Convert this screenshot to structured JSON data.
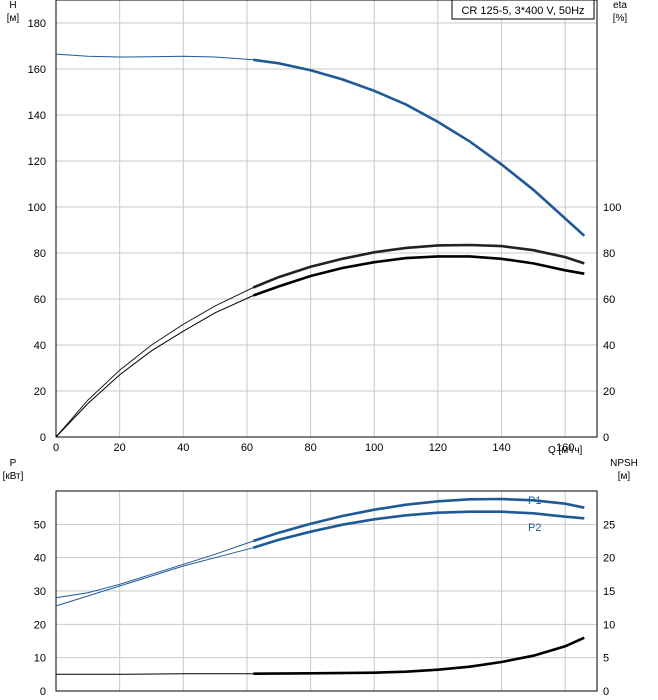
{
  "chart_data": [
    {
      "type": "line",
      "title": "CR 125-5, 3*400 V, 50Hz",
      "xlabel": "Q [м³/ч]",
      "x_ticks": [
        "0",
        "20",
        "40",
        "60",
        "80",
        "100",
        "120",
        "140",
        "160"
      ],
      "xlim": [
        0,
        170
      ],
      "y_left": {
        "label_top": "H",
        "label_unit": "[м]",
        "lim": [
          0,
          190
        ],
        "ticks": [
          "0",
          "20",
          "40",
          "60",
          "80",
          "100",
          "120",
          "140",
          "160",
          "180"
        ]
      },
      "y_right": {
        "label_top": "eta",
        "label_unit": "[%]",
        "lim": [
          0,
          190
        ],
        "ticks": [
          "0",
          "20",
          "40",
          "60",
          "80",
          "100"
        ]
      },
      "grid": true,
      "series": [
        {
          "role": "H",
          "color": "#1f5a96",
          "x": [
            0,
            10,
            20,
            30,
            40,
            50,
            62
          ],
          "y": [
            166.5,
            165.5,
            165.2,
            165.3,
            165.5,
            165.2,
            164
          ],
          "x_bold": [
            62,
            70,
            80,
            90,
            100,
            110,
            120,
            130,
            140,
            150,
            160,
            166
          ],
          "y_bold": [
            164,
            162.5,
            159.5,
            155.5,
            150.5,
            144.5,
            137,
            128.5,
            118.5,
            107.5,
            95,
            87.5
          ]
        },
        {
          "role": "eta-1",
          "color": "#222222",
          "x": [
            0,
            10,
            20,
            30,
            40,
            50,
            62
          ],
          "y": [
            0,
            16,
            29,
            40,
            49,
            57,
            65
          ],
          "x_bold": [
            62,
            70,
            80,
            90,
            100,
            110,
            120,
            130,
            140,
            150,
            160,
            166
          ],
          "y_bold": [
            65,
            69.5,
            74,
            77.5,
            80.3,
            82.2,
            83.3,
            83.5,
            83,
            81.2,
            78.2,
            75.5
          ]
        },
        {
          "role": "eta-2",
          "color": "#000000",
          "x": [
            0,
            10,
            20,
            30,
            40,
            50,
            62
          ],
          "y": [
            0,
            14.5,
            27,
            37.5,
            46,
            54,
            61.5
          ],
          "x_bold": [
            62,
            70,
            80,
            90,
            100,
            110,
            120,
            130,
            140,
            150,
            160,
            166
          ],
          "y_bold": [
            61.5,
            65.5,
            70,
            73.5,
            76,
            77.8,
            78.5,
            78.5,
            77.5,
            75.5,
            72.5,
            71
          ]
        }
      ]
    },
    {
      "type": "line",
      "x_ticks": [
        "0",
        "20",
        "40",
        "60",
        "80",
        "100",
        "120",
        "140",
        "160"
      ],
      "xlim": [
        0,
        170
      ],
      "y_left": {
        "label_top": "P",
        "label_unit": "[кВт]",
        "lim": [
          0,
          60
        ],
        "ticks": [
          "0",
          "10",
          "20",
          "30",
          "40",
          "50"
        ]
      },
      "y_right": {
        "label_top": "NPSH",
        "label_unit": "[м]",
        "lim": [
          0,
          30
        ],
        "ticks": [
          "0",
          "5",
          "10",
          "15",
          "20",
          "25"
        ]
      },
      "grid": true,
      "series": [
        {
          "name": "P1",
          "color": "#1f5a96",
          "axis": "left",
          "x": [
            0,
            10,
            20,
            30,
            40,
            50,
            62
          ],
          "y": [
            28,
            29.5,
            32,
            35,
            38,
            41,
            45
          ],
          "x_bold": [
            62,
            70,
            80,
            90,
            100,
            110,
            120,
            130,
            140,
            150,
            160,
            166
          ],
          "y_bold": [
            45,
            47.5,
            50.2,
            52.5,
            54.4,
            55.9,
            56.9,
            57.5,
            57.6,
            57.2,
            56.2,
            55
          ]
        },
        {
          "name": "P2",
          "color": "#1f5a96",
          "axis": "left",
          "x": [
            0,
            10,
            20,
            30,
            40,
            50,
            62
          ],
          "y": [
            25.5,
            28.5,
            31.5,
            34.5,
            37.5,
            40,
            43
          ],
          "x_bold": [
            62,
            70,
            80,
            90,
            100,
            110,
            120,
            130,
            140,
            150,
            160,
            166
          ],
          "y_bold": [
            43,
            45.4,
            47.8,
            49.9,
            51.5,
            52.7,
            53.5,
            53.8,
            53.8,
            53.3,
            52.3,
            51.8
          ]
        },
        {
          "role": "NPSH",
          "color": "#000000",
          "axis": "right",
          "x": [
            0,
            20,
            40,
            62
          ],
          "y": [
            2.5,
            2.5,
            2.6,
            2.6
          ],
          "x_bold": [
            62,
            80,
            100,
            110,
            120,
            130,
            140,
            150,
            160,
            166
          ],
          "y_bold": [
            2.6,
            2.65,
            2.75,
            2.9,
            3.2,
            3.65,
            4.35,
            5.3,
            6.7,
            8
          ]
        }
      ]
    }
  ]
}
